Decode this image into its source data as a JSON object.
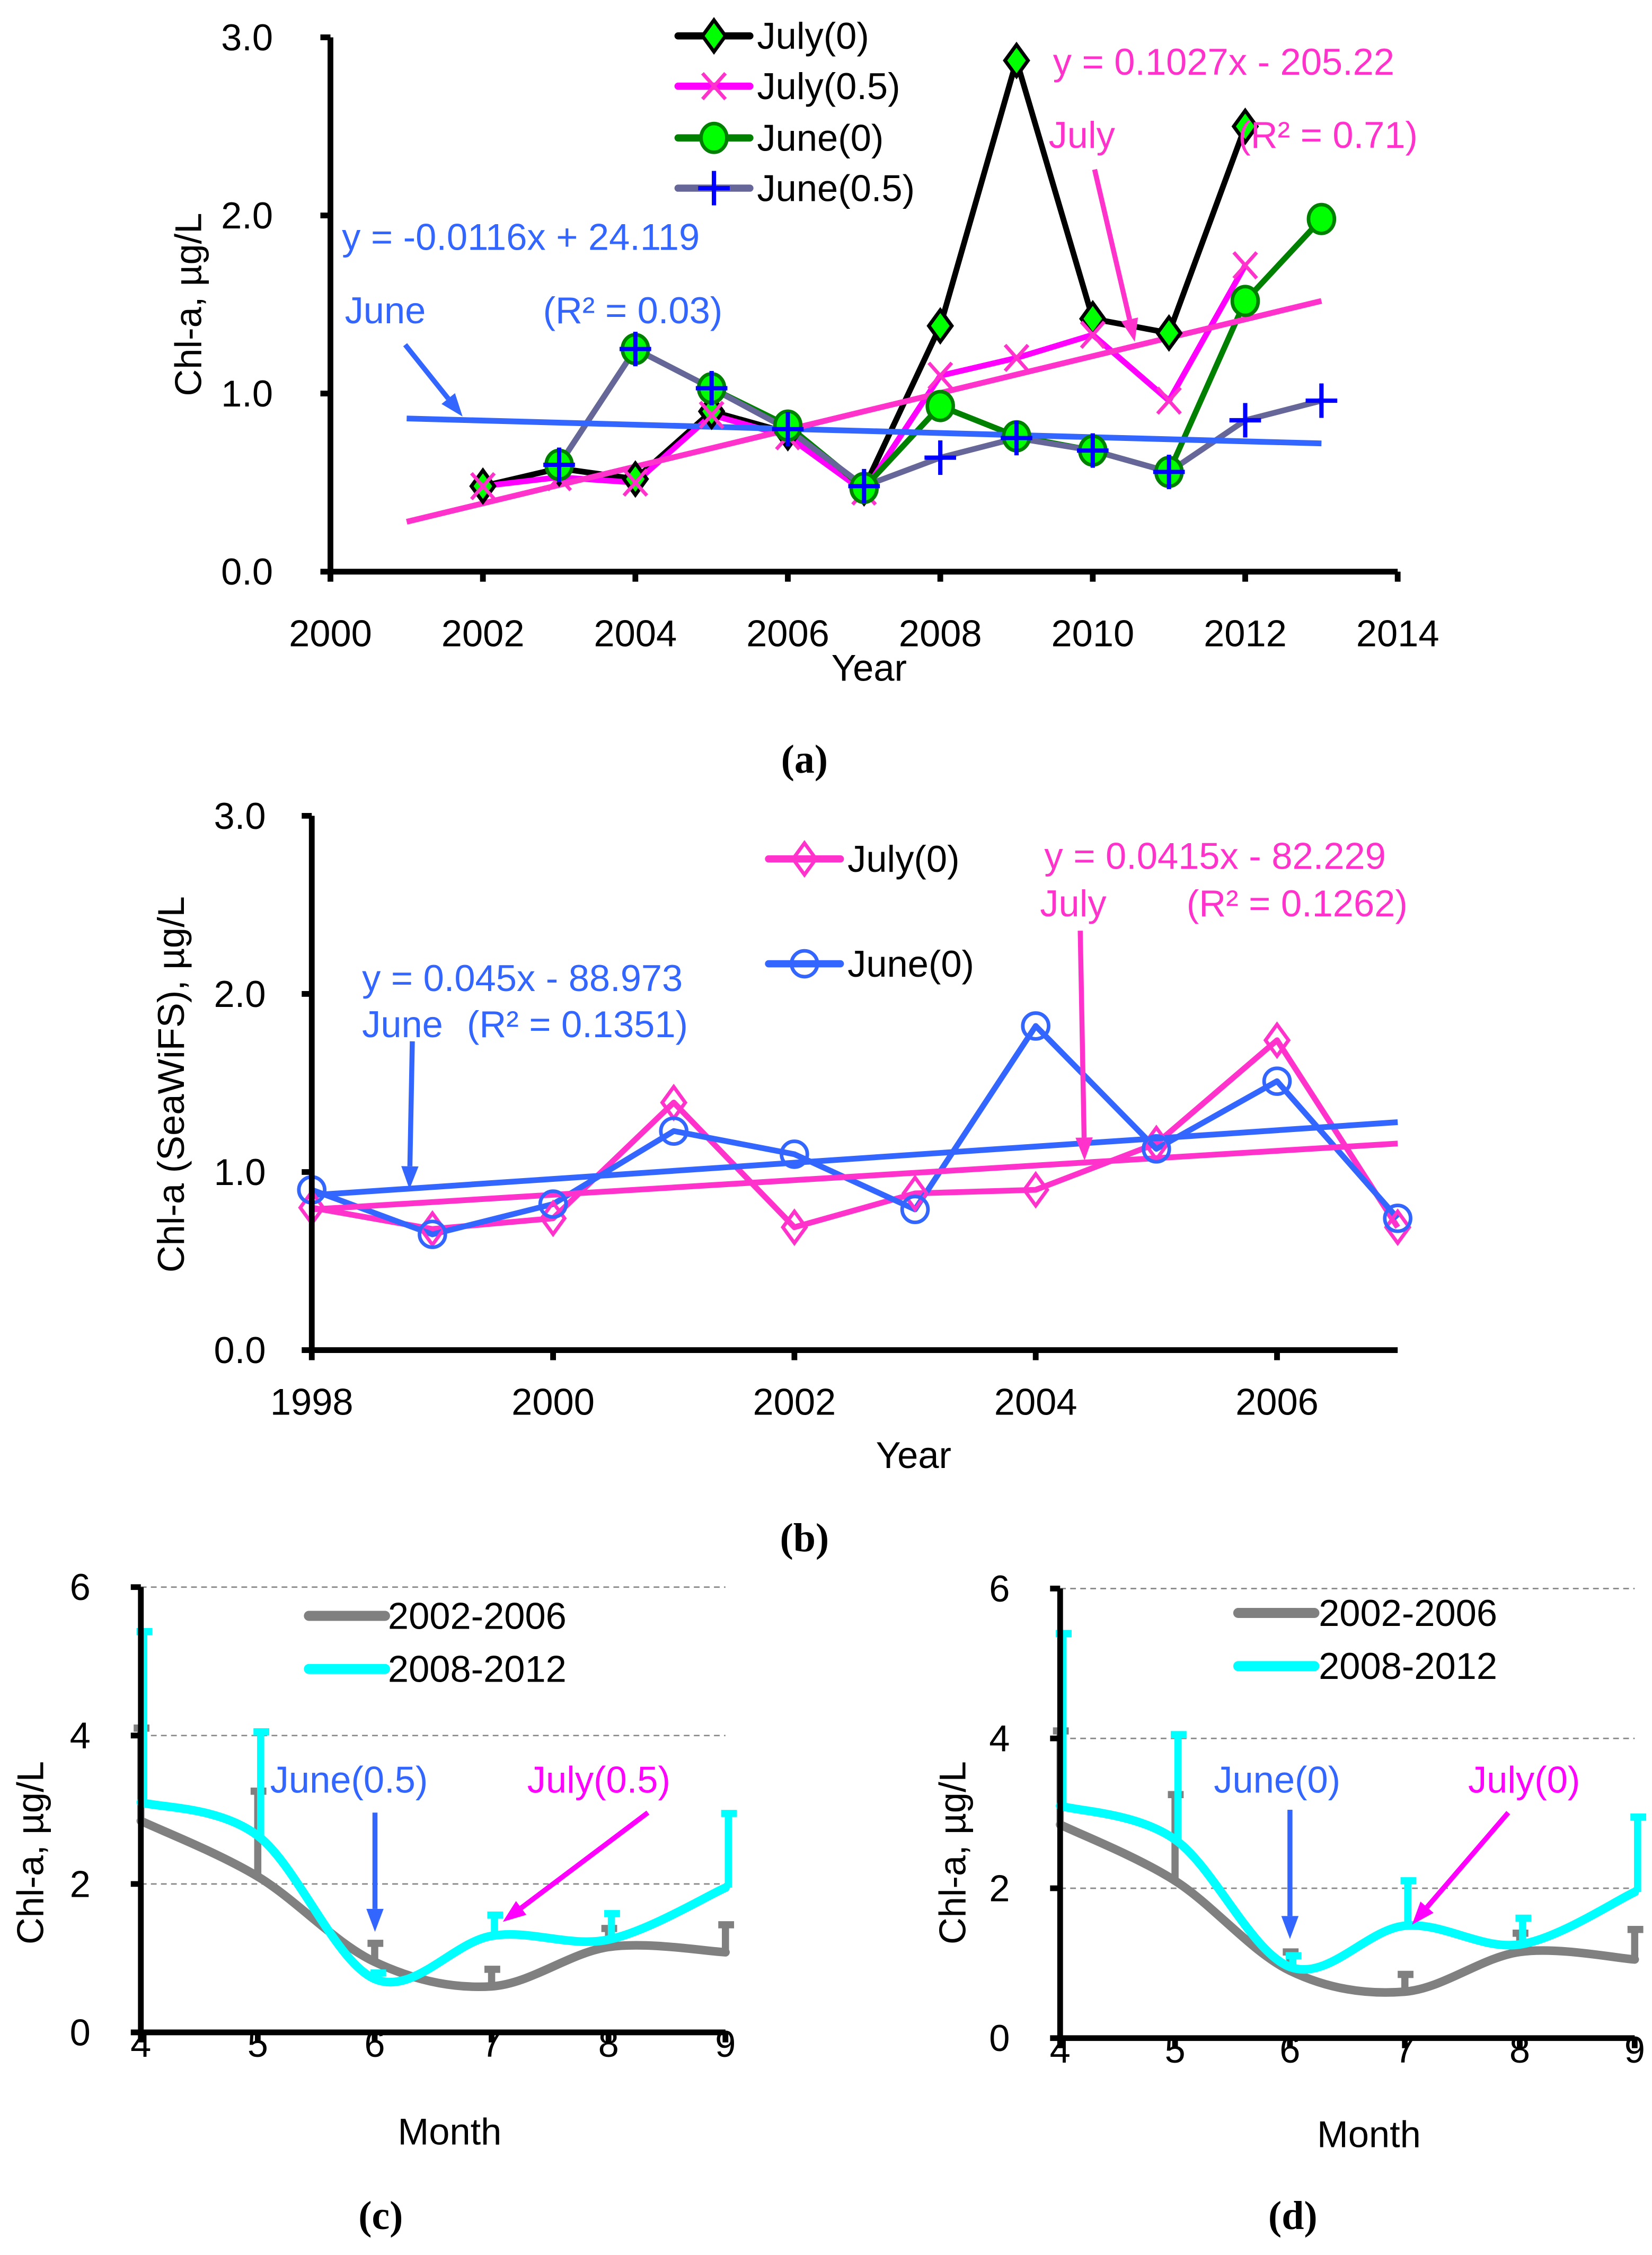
{
  "chart_data": [
    {
      "panel": "(a)",
      "type": "line",
      "xlabel": "Year",
      "ylabel": "Chl-a, µg/L",
      "xlim": [
        2000,
        2014
      ],
      "ylim": [
        0,
        3
      ],
      "grid": false,
      "xtick_labels": [
        "2000",
        "2002",
        "2004",
        "2006",
        "2008",
        "2010",
        "2012",
        "2014"
      ],
      "ytick_labels": [
        "0.0",
        "1.0",
        "2.0",
        "3.0"
      ],
      "legend_placement": "top-center",
      "series": [
        {
          "name": "July(0)",
          "line_color": "#000000",
          "marker": "diamond",
          "marker_fill": "#00ff00",
          "marker_stroke": "#000000",
          "x": [
            2002,
            2003,
            2004,
            2005,
            2006,
            2007,
            2008,
            2009,
            2010,
            2011,
            2012
          ],
          "y": [
            0.48,
            0.58,
            0.52,
            0.9,
            0.78,
            0.47,
            1.38,
            2.87,
            1.42,
            1.34,
            2.5
          ]
        },
        {
          "name": "July(0.5)",
          "line_color": "#ff00ff",
          "marker": "x",
          "marker_fill": "none",
          "marker_stroke": "#ff33cc",
          "x": [
            2002,
            2003,
            2004,
            2005,
            2006,
            2007,
            2008,
            2009,
            2010,
            2011,
            2012
          ],
          "y": [
            0.48,
            0.53,
            0.5,
            0.88,
            0.76,
            0.45,
            1.1,
            1.2,
            1.33,
            0.96,
            1.72
          ]
        },
        {
          "name": "June(0)",
          "line_color": "#008000",
          "marker": "circle",
          "marker_fill": "#00ff00",
          "marker_stroke": "#008000",
          "x": [
            2003,
            2004,
            2005,
            2006,
            2007,
            2008,
            2009,
            2010,
            2011,
            2012,
            2013
          ],
          "y": [
            0.6,
            1.25,
            1.03,
            0.82,
            0.47,
            0.93,
            0.76,
            0.68,
            0.56,
            1.52,
            1.98
          ]
        },
        {
          "name": "June(0.5)",
          "line_color": "#666699",
          "marker": "plus",
          "marker_fill": "none",
          "marker_stroke": "#0000ff",
          "x": [
            2003,
            2004,
            2005,
            2006,
            2007,
            2008,
            2009,
            2010,
            2011,
            2012,
            2013
          ],
          "y": [
            0.6,
            1.25,
            1.03,
            0.8,
            0.48,
            0.64,
            0.75,
            0.68,
            0.56,
            0.85,
            0.96
          ]
        }
      ],
      "trendlines": [
        {
          "name": "June",
          "color": "#3366ff",
          "x": [
            2001,
            2013
          ],
          "y": [
            0.86,
            0.72
          ]
        },
        {
          "name": "July",
          "color": "#ff33cc",
          "x": [
            2001,
            2013
          ],
          "y": [
            0.28,
            1.52
          ]
        }
      ],
      "annotations": [
        {
          "text": "y = 0.1027x - 205.22",
          "color": "#ff33cc"
        },
        {
          "text": "July",
          "color": "#ff33cc"
        },
        {
          "text": "(R² = 0.71)",
          "color": "#ff33cc"
        },
        {
          "text": "y = -0.0116x + 24.119",
          "color": "#3366ff"
        },
        {
          "text": "June",
          "color": "#3366ff"
        },
        {
          "text": "(R² = 0.03)",
          "color": "#3366ff"
        }
      ]
    },
    {
      "panel": "(b)",
      "type": "line",
      "xlabel": "Year",
      "ylabel": "Chl-a (SeaWiFS), µg/L",
      "xlim": [
        1998,
        2007
      ],
      "ylim": [
        0,
        3
      ],
      "grid": false,
      "xtick_labels": [
        "1998",
        "2000",
        "2002",
        "2004",
        "2006"
      ],
      "ytick_labels": [
        "0.0",
        "1.0",
        "2.0",
        "3.0"
      ],
      "legend_placement": "top-center",
      "series": [
        {
          "name": "July(0)",
          "line_color": "#ff33cc",
          "marker": "open-diamond",
          "marker_fill": "none",
          "marker_stroke": "#ff33cc",
          "x": [
            1998,
            1999,
            2000,
            2001,
            2002,
            2003,
            2004,
            2005,
            2006,
            2007
          ],
          "y": [
            0.8,
            0.68,
            0.74,
            1.39,
            0.69,
            0.88,
            0.9,
            1.16,
            1.74,
            0.69
          ]
        },
        {
          "name": "June(0)",
          "line_color": "#3366ff",
          "marker": "open-circle",
          "marker_fill": "none",
          "marker_stroke": "#3366ff",
          "x": [
            1998,
            1999,
            2000,
            2001,
            2002,
            2003,
            2004,
            2005,
            2006,
            2007
          ],
          "y": [
            0.9,
            0.65,
            0.82,
            1.23,
            1.1,
            0.79,
            1.82,
            1.13,
            1.51,
            0.74
          ]
        }
      ],
      "trendlines": [
        {
          "name": "June",
          "color": "#3366ff",
          "x": [
            1998,
            2007
          ],
          "y": [
            0.87,
            1.28
          ]
        },
        {
          "name": "July",
          "color": "#ff33cc",
          "x": [
            1998,
            2007
          ],
          "y": [
            0.79,
            1.16
          ]
        }
      ],
      "annotations": [
        {
          "text": "y = 0.0415x - 82.229",
          "color": "#ff33cc"
        },
        {
          "text": "July",
          "color": "#ff33cc"
        },
        {
          "text": "(R² = 0.1262)",
          "color": "#ff33cc"
        },
        {
          "text": "y = 0.045x - 88.973",
          "color": "#3366ff"
        },
        {
          "text": "June",
          "color": "#3366ff"
        },
        {
          "text": "(R² = 0.1351)",
          "color": "#3366ff"
        }
      ]
    },
    {
      "panel": "(c)",
      "type": "line",
      "xlabel": "Month",
      "ylabel": "Chl-a,  µg/L",
      "xlim": [
        4,
        9
      ],
      "ylim": [
        0,
        6
      ],
      "grid": true,
      "xtick_labels": [
        "4",
        "5",
        "6",
        "7",
        "8",
        "9"
      ],
      "ytick_labels": [
        "0",
        "2",
        "4",
        "6"
      ],
      "legend_placement": "top-center",
      "series": [
        {
          "name": "2002-2006",
          "line_color": "#808080",
          "smooth": true,
          "x": [
            4,
            5,
            6,
            7,
            8,
            9
          ],
          "y": [
            2.85,
            2.1,
            0.95,
            0.62,
            1.15,
            1.08
          ],
          "error_upper": [
            4.1,
            3.25,
            1.2,
            0.85,
            1.4,
            1.45
          ]
        },
        {
          "name": "2008-2012",
          "line_color": "#00ffff",
          "smooth": true,
          "x": [
            4,
            5,
            6,
            7,
            8,
            9
          ],
          "y": [
            3.1,
            2.65,
            0.72,
            1.3,
            1.25,
            1.95
          ],
          "error_upper": [
            5.4,
            4.05,
            0.8,
            1.58,
            1.6,
            2.95
          ]
        }
      ],
      "trendlines": [],
      "annotations": [
        {
          "text": "June(0.5)",
          "color": "#3366ff"
        },
        {
          "text": "July(0.5)",
          "color": "#ff00ff"
        }
      ]
    },
    {
      "panel": "(d)",
      "type": "line",
      "xlabel": "Month",
      "ylabel": "Chl-a,  µg/L",
      "xlim": [
        4,
        9
      ],
      "ylim": [
        0,
        6
      ],
      "grid": true,
      "xtick_labels": [
        "4",
        "5",
        "6",
        "7",
        "8",
        "9"
      ],
      "ytick_labels": [
        "0",
        "2",
        "4",
        "6"
      ],
      "legend_placement": "top-center",
      "series": [
        {
          "name": "2002-2006",
          "line_color": "#808080",
          "smooth": true,
          "x": [
            4,
            5,
            6,
            7,
            8,
            9
          ],
          "y": [
            2.85,
            2.1,
            0.9,
            0.62,
            1.15,
            1.05
          ],
          "error_upper": [
            4.1,
            3.25,
            1.15,
            0.85,
            1.4,
            1.45
          ]
        },
        {
          "name": "2008-2012",
          "line_color": "#00ffff",
          "smooth": true,
          "x": [
            4,
            5,
            6,
            7,
            8,
            9
          ],
          "y": [
            3.1,
            2.65,
            0.95,
            1.5,
            1.25,
            1.95
          ],
          "error_upper": [
            5.4,
            4.05,
            1.1,
            2.1,
            1.6,
            2.95
          ]
        }
      ],
      "trendlines": [],
      "annotations": [
        {
          "text": "June(0)",
          "color": "#3366ff"
        },
        {
          "text": "July(0)",
          "color": "#ff00ff"
        }
      ]
    }
  ]
}
